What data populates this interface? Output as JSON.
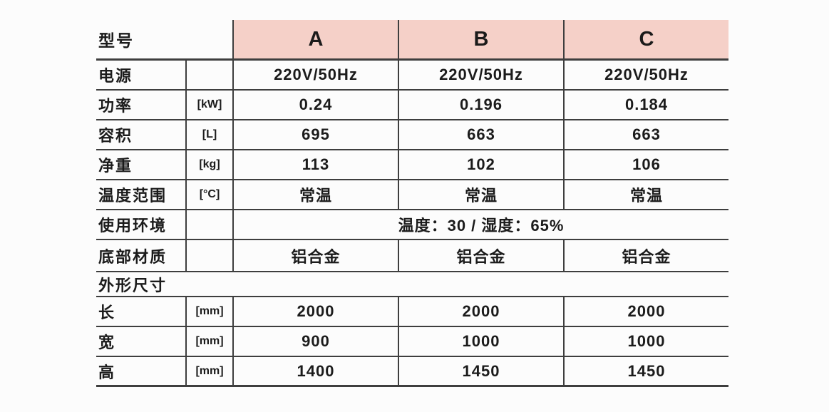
{
  "table": {
    "colors": {
      "header_bg": "#f5d0c8",
      "line": "#3e3e3e",
      "text": "#1b1b1b",
      "background": "#fcfcfc"
    },
    "model_label": "型号",
    "columns": [
      "A",
      "B",
      "C"
    ],
    "rows": [
      {
        "label": "电源",
        "unit": "",
        "values": [
          "220V/50Hz",
          "220V/50Hz",
          "220V/50Hz"
        ]
      },
      {
        "label": "功率",
        "unit": "[kW]",
        "values": [
          "0.24",
          "0.196",
          "0.184"
        ]
      },
      {
        "label": "容积",
        "unit": "[L]",
        "values": [
          "695",
          "663",
          "663"
        ]
      },
      {
        "label": "净重",
        "unit": "[kg]",
        "values": [
          "113",
          "102",
          "106"
        ]
      },
      {
        "label": "温度范围",
        "unit": "[°C]",
        "values": [
          "常温",
          "常温",
          "常温"
        ]
      },
      {
        "label": "使用环境",
        "unit": "",
        "merged_value": "温度：30 / 湿度：65%"
      },
      {
        "label": "底部材质",
        "unit": "",
        "values": [
          "铝合金",
          "铝合金",
          "铝合金"
        ]
      },
      {
        "section_label": "外形尺寸"
      },
      {
        "label": "长",
        "unit": "[mm]",
        "values": [
          "2000",
          "2000",
          "2000"
        ]
      },
      {
        "label": "宽",
        "unit": "[mm]",
        "values": [
          "900",
          "1000",
          "1000"
        ]
      },
      {
        "label": "高",
        "unit": "[mm]",
        "values": [
          "1400",
          "1450",
          "1450"
        ]
      }
    ]
  }
}
